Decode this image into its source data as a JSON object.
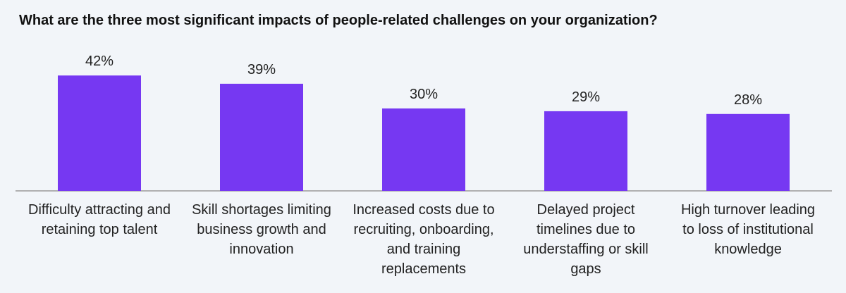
{
  "chart_data": {
    "type": "bar",
    "title": "What are the three most significant impacts of people-related challenges on your organization?",
    "categories": [
      "Difficulty attracting and retaining top talent",
      "Skill shortages limiting business growth and innovation",
      "Increased costs due to recruiting, onboarding, and training replacements",
      "Delayed project timelines due to understaffing or skill gaps",
      "High turnover leading to loss of institutional knowledge"
    ],
    "values": [
      42,
      39,
      30,
      29,
      28
    ],
    "value_labels": [
      "42%",
      "39%",
      "30%",
      "29%",
      "28%"
    ],
    "color": "#7638f2"
  }
}
